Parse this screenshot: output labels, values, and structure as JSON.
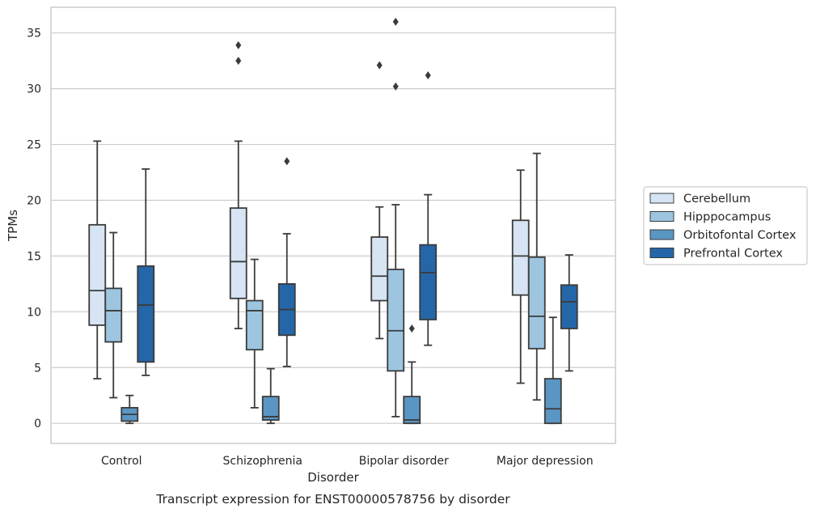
{
  "chart_data": {
    "type": "box",
    "title": "",
    "caption": "Transcript expression for ENST00000578756 by disorder",
    "xlabel": "Disorder",
    "ylabel": "TPMs",
    "ylim": [
      -1.8,
      37.3
    ],
    "yticks": [
      0,
      5,
      10,
      15,
      20,
      25,
      30,
      35
    ],
    "grid": "horizontal",
    "legend_position": "right",
    "categories": [
      "Control",
      "Schizophrenia",
      "Bipolar disorder",
      "Major depression"
    ],
    "series": [
      {
        "name": "Cerebellum",
        "color": "#d6e4f3",
        "boxes": [
          {
            "whisker_low": 4.0,
            "q1": 8.8,
            "median": 11.9,
            "q3": 17.8,
            "whisker_high": 25.3,
            "outliers": []
          },
          {
            "whisker_low": 8.5,
            "q1": 11.2,
            "median": 14.5,
            "q3": 19.3,
            "whisker_high": 25.3,
            "outliers": [
              33.9,
              32.5
            ]
          },
          {
            "whisker_low": 7.6,
            "q1": 11.0,
            "median": 13.2,
            "q3": 16.7,
            "whisker_high": 19.4,
            "outliers": [
              32.1
            ]
          },
          {
            "whisker_low": 3.6,
            "q1": 11.5,
            "median": 15.0,
            "q3": 18.2,
            "whisker_high": 22.7,
            "outliers": []
          }
        ]
      },
      {
        "name": "Hipppocampus",
        "color": "#9dc5e0",
        "boxes": [
          {
            "whisker_low": 2.3,
            "q1": 7.3,
            "median": 10.1,
            "q3": 12.1,
            "whisker_high": 17.1,
            "outliers": []
          },
          {
            "whisker_low": 1.4,
            "q1": 6.6,
            "median": 10.1,
            "q3": 11.0,
            "whisker_high": 14.7,
            "outliers": []
          },
          {
            "whisker_low": 0.6,
            "q1": 4.7,
            "median": 8.3,
            "q3": 13.8,
            "whisker_high": 19.6,
            "outliers": [
              36.0,
              30.2
            ]
          },
          {
            "whisker_low": 2.1,
            "q1": 6.7,
            "median": 9.6,
            "q3": 14.9,
            "whisker_high": 24.2,
            "outliers": []
          }
        ]
      },
      {
        "name": "Orbitofontal Cortex",
        "color": "#5a96c4",
        "boxes": [
          {
            "whisker_low": 0.0,
            "q1": 0.2,
            "median": 0.8,
            "q3": 1.4,
            "whisker_high": 2.5,
            "outliers": []
          },
          {
            "whisker_low": 0.0,
            "q1": 0.3,
            "median": 0.6,
            "q3": 2.4,
            "whisker_high": 4.9,
            "outliers": []
          },
          {
            "whisker_low": 0.0,
            "q1": 0.0,
            "median": 0.3,
            "q3": 2.4,
            "whisker_high": 5.5,
            "outliers": [
              8.5
            ]
          },
          {
            "whisker_low": 0.0,
            "q1": 0.0,
            "median": 1.3,
            "q3": 4.0,
            "whisker_high": 9.5,
            "outliers": []
          }
        ]
      },
      {
        "name": "Prefrontal Cortex",
        "color": "#2566a8",
        "boxes": [
          {
            "whisker_low": 4.3,
            "q1": 5.5,
            "median": 10.6,
            "q3": 14.1,
            "whisker_high": 22.8,
            "outliers": []
          },
          {
            "whisker_low": 5.1,
            "q1": 7.9,
            "median": 10.2,
            "q3": 12.5,
            "whisker_high": 17.0,
            "outliers": [
              23.5
            ]
          },
          {
            "whisker_low": 7.0,
            "q1": 9.3,
            "median": 13.5,
            "q3": 16.0,
            "whisker_high": 20.5,
            "outliers": [
              31.2
            ]
          },
          {
            "whisker_low": 4.7,
            "q1": 8.5,
            "median": 10.9,
            "q3": 12.4,
            "whisker_high": 15.1,
            "outliers": []
          }
        ]
      }
    ],
    "colors": {
      "line": "#3b3b3b",
      "grid": "#cccccc",
      "frame": "#cccccc"
    }
  }
}
